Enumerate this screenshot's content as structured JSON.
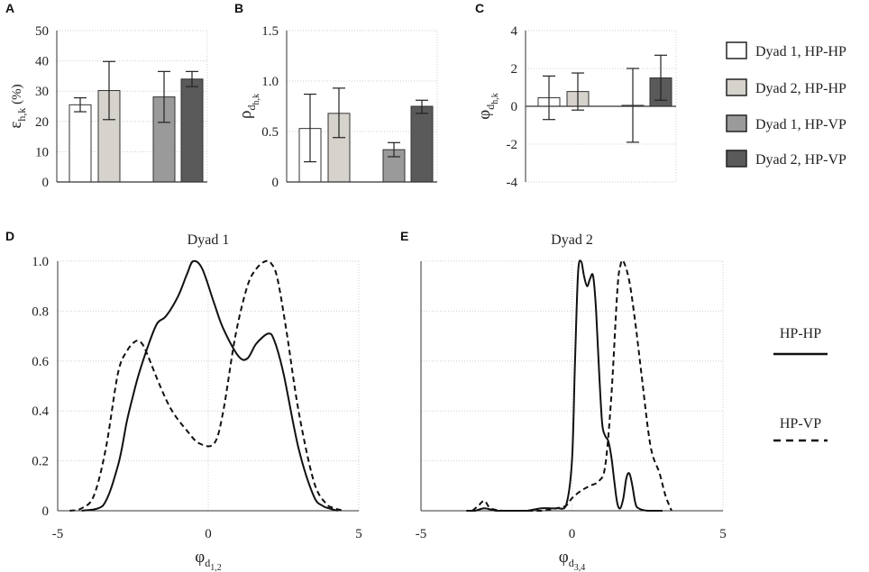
{
  "chart_data": [
    {
      "panel": "A",
      "type": "bar",
      "ylabel": "ε",
      "ylabel_sub": "h,k",
      "ylabel_suffix": " (%)",
      "ylim": [
        0,
        50
      ],
      "yticks": [
        0,
        10,
        20,
        30,
        40,
        50
      ],
      "grid": true,
      "bars": [
        {
          "series": "Dyad 1, HP-HP",
          "value": 25.5,
          "err_low": 23.2,
          "err_high": 27.8
        },
        {
          "series": "Dyad 2, HP-HP",
          "value": 30.2,
          "err_low": 20.6,
          "err_high": 39.8
        },
        {
          "series": "Dyad 1, HP-VP",
          "value": 28.1,
          "err_low": 19.7,
          "err_high": 36.5
        },
        {
          "series": "Dyad 2, HP-VP",
          "value": 34.0,
          "err_low": 31.5,
          "err_high": 36.5
        }
      ]
    },
    {
      "panel": "B",
      "type": "bar",
      "ylabel": "ρ",
      "ylabel_sub": "d",
      "ylabel_subsub": "h,k",
      "ylim": [
        0,
        1.5
      ],
      "yticks": [
        "0",
        "0.5",
        "1.0",
        "1.5"
      ],
      "yticks_values": [
        0,
        0.5,
        1.0,
        1.5
      ],
      "grid": true,
      "bars": [
        {
          "series": "Dyad 1, HP-HP",
          "value": 0.53,
          "err_low": 0.2,
          "err_high": 0.87
        },
        {
          "series": "Dyad 2, HP-HP",
          "value": 0.68,
          "err_low": 0.44,
          "err_high": 0.93
        },
        {
          "series": "Dyad 1, HP-VP",
          "value": 0.32,
          "err_low": 0.25,
          "err_high": 0.39
        },
        {
          "series": "Dyad 2, HP-VP",
          "value": 0.75,
          "err_low": 0.68,
          "err_high": 0.81
        }
      ]
    },
    {
      "panel": "C",
      "type": "bar",
      "ylabel": "φ",
      "ylabel_sub": "d",
      "ylabel_subsub": "h,k",
      "ylim": [
        -4,
        4
      ],
      "yticks": [
        -4,
        -2,
        0,
        2,
        4
      ],
      "grid": true,
      "bars": [
        {
          "series": "Dyad 1, HP-HP",
          "value": 0.45,
          "err_low": -0.7,
          "err_high": 1.6
        },
        {
          "series": "Dyad 2, HP-HP",
          "value": 0.78,
          "err_low": -0.2,
          "err_high": 1.76
        },
        {
          "series": "Dyad 1, HP-VP",
          "value": 0.05,
          "err_low": -1.9,
          "err_high": 2.0
        },
        {
          "series": "Dyad 2, HP-VP",
          "value": 1.5,
          "err_low": 0.32,
          "err_high": 2.7
        }
      ]
    },
    {
      "panel": "D",
      "type": "line",
      "title": "Dyad 1",
      "xlabel": "φ",
      "xlabel_sub": "d",
      "xlabel_subsub": "1,2",
      "xlim": [
        -5,
        5
      ],
      "ylim": [
        0,
        1.0
      ],
      "xticks": [
        -5,
        0,
        5
      ],
      "yticks": [
        "0",
        "0.2",
        "0.4",
        "0.6",
        "0.8",
        "1.0"
      ],
      "yticks_values": [
        0,
        0.2,
        0.4,
        0.6,
        0.8,
        1.0
      ],
      "grid": true,
      "series": [
        {
          "name": "HP-HP",
          "style": "solid",
          "x": [
            -4.2,
            -3.5,
            -3.0,
            -2.7,
            -2.5,
            -2.3,
            -2.0,
            -1.7,
            -1.4,
            -1.0,
            -0.7,
            -0.5,
            -0.2,
            0.2,
            0.5,
            1.0,
            1.3,
            1.6,
            2.0,
            2.2,
            2.5,
            3.0,
            3.5,
            3.8,
            4.0,
            4.3
          ],
          "values": [
            0.0,
            0.02,
            0.18,
            0.36,
            0.46,
            0.55,
            0.66,
            0.75,
            0.78,
            0.86,
            0.95,
            1.0,
            0.97,
            0.83,
            0.73,
            0.62,
            0.61,
            0.67,
            0.71,
            0.68,
            0.55,
            0.25,
            0.06,
            0.02,
            0.01,
            0.0
          ]
        },
        {
          "name": "HP-VP",
          "style": "dashed",
          "x": [
            -4.6,
            -4.2,
            -3.8,
            -3.4,
            -3.0,
            -2.7,
            -2.4,
            -2.2,
            -2.0,
            -1.6,
            -1.2,
            -0.7,
            -0.3,
            0.2,
            0.5,
            0.9,
            1.3,
            1.6,
            1.9,
            2.1,
            2.3,
            2.6,
            3.0,
            3.5,
            3.9,
            4.2,
            4.5
          ],
          "values": [
            0.0,
            0.01,
            0.06,
            0.25,
            0.55,
            0.64,
            0.68,
            0.67,
            0.62,
            0.5,
            0.4,
            0.32,
            0.27,
            0.27,
            0.4,
            0.7,
            0.9,
            0.97,
            1.0,
            0.99,
            0.93,
            0.72,
            0.4,
            0.12,
            0.03,
            0.01,
            0.0
          ]
        }
      ]
    },
    {
      "panel": "E",
      "type": "line",
      "title": "Dyad 2",
      "xlabel": "φ",
      "xlabel_sub": "d",
      "xlabel_subsub": "3,4",
      "xlim": [
        -5,
        5
      ],
      "ylim": [
        0,
        1.0
      ],
      "xticks": [
        -5,
        0,
        5
      ],
      "yticks": [],
      "grid": true,
      "series": [
        {
          "name": "HP-HP",
          "style": "solid",
          "x": [
            -3.5,
            -3.2,
            -2.9,
            -2.5,
            -2.0,
            -1.5,
            -1.0,
            -0.5,
            -0.2,
            0.0,
            0.1,
            0.2,
            0.3,
            0.4,
            0.5,
            0.6,
            0.7,
            0.8,
            0.9,
            1.0,
            1.1,
            1.2,
            1.3,
            1.4,
            1.5,
            1.6,
            1.7,
            1.8,
            1.9,
            2.0,
            2.1,
            2.2,
            2.5,
            3.0
          ],
          "values": [
            0.0,
            0.0,
            0.01,
            0.0,
            0.0,
            0.0,
            0.01,
            0.01,
            0.02,
            0.2,
            0.6,
            0.95,
            1.0,
            0.94,
            0.9,
            0.93,
            0.94,
            0.8,
            0.55,
            0.35,
            0.3,
            0.28,
            0.22,
            0.12,
            0.03,
            0.01,
            0.05,
            0.13,
            0.15,
            0.1,
            0.03,
            0.01,
            0.0,
            0.0
          ]
        },
        {
          "name": "HP-VP",
          "style": "dashed",
          "x": [
            -3.3,
            -3.1,
            -2.9,
            -2.7,
            -2.3,
            -2.0,
            -1.5,
            -1.0,
            -0.5,
            -0.2,
            0.0,
            0.3,
            0.6,
            0.9,
            1.1,
            1.3,
            1.5,
            1.6,
            1.7,
            1.9,
            2.1,
            2.3,
            2.6,
            2.9,
            3.1,
            3.3
          ],
          "values": [
            0.0,
            0.02,
            0.04,
            0.01,
            0.0,
            0.0,
            0.0,
            0.0,
            0.01,
            0.02,
            0.05,
            0.08,
            0.1,
            0.12,
            0.18,
            0.45,
            0.88,
            0.98,
            1.0,
            0.92,
            0.75,
            0.55,
            0.26,
            0.15,
            0.06,
            0.0
          ]
        }
      ]
    }
  ],
  "legend_bars": {
    "items": [
      {
        "label": "Dyad 1, HP-HP",
        "fill": "#ffffff"
      },
      {
        "label": "Dyad 2, HP-HP",
        "fill": "#d6d2cc"
      },
      {
        "label": "Dyad 1, HP-VP",
        "fill": "#9a9a9a"
      },
      {
        "label": "Dyad 2, HP-VP",
        "fill": "#5a5a5a"
      }
    ]
  },
  "legend_lines": {
    "items": [
      {
        "label": "HP-HP",
        "style": "solid"
      },
      {
        "label": "HP-VP",
        "style": "dashed"
      }
    ]
  }
}
